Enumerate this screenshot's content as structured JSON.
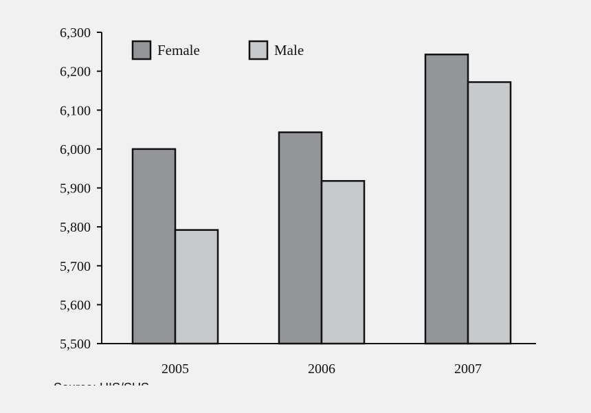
{
  "chart_data": {
    "type": "bar",
    "categories": [
      "2005",
      "2006",
      "2007"
    ],
    "series": [
      {
        "name": "Female",
        "values": [
          6000,
          6043,
          6243
        ],
        "color": "#939598"
      },
      {
        "name": "Male",
        "values": [
          5792,
          5918,
          6172
        ],
        "color": "#c8c9cb"
      }
    ],
    "ylim": [
      5500,
      6300
    ],
    "yticks": [
      5500,
      5600,
      5700,
      5800,
      5900,
      6000,
      6100,
      6200,
      6300
    ],
    "ytick_labels": [
      "5,500",
      "5,600",
      "5,700",
      "5,800",
      "5,900",
      "6,000",
      "6,100",
      "6,200",
      "6,300"
    ],
    "grid": false,
    "legend_position": "top-left",
    "source_note": "Source: HIS/SUS"
  }
}
